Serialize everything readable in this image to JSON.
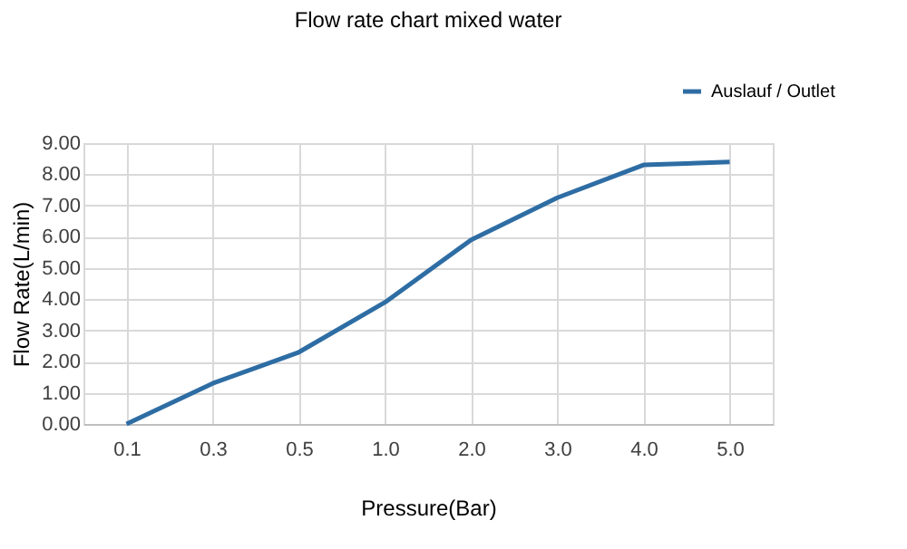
{
  "chart_data": {
    "type": "line",
    "title": "Flow rate chart mixed water",
    "xlabel": "Pressure(Bar)",
    "ylabel": "Flow Rate(L/min)",
    "categories": [
      "0.1",
      "0.3",
      "0.5",
      "1.0",
      "2.0",
      "3.0",
      "4.0",
      "5.0"
    ],
    "series": [
      {
        "name": "Auslauf / Outlet",
        "color": "#2e6da4",
        "values": [
          0,
          1.3,
          2.3,
          3.9,
          5.9,
          7.25,
          8.3,
          8.4
        ]
      }
    ],
    "ylim": [
      0,
      9
    ],
    "yticks": [
      {
        "value": 0,
        "label": "0.00"
      },
      {
        "value": 1,
        "label": "1.00"
      },
      {
        "value": 2,
        "label": "2.00"
      },
      {
        "value": 3,
        "label": "3.00"
      },
      {
        "value": 4,
        "label": "4.00"
      },
      {
        "value": 5,
        "label": "5.00"
      },
      {
        "value": 6,
        "label": "6.00"
      },
      {
        "value": 7,
        "label": "7.00"
      },
      {
        "value": 8,
        "label": "8.00"
      },
      {
        "value": 9,
        "label": "9.00"
      }
    ],
    "grid": true,
    "legend": "top right",
    "marker": "none",
    "line_style": "solid"
  }
}
